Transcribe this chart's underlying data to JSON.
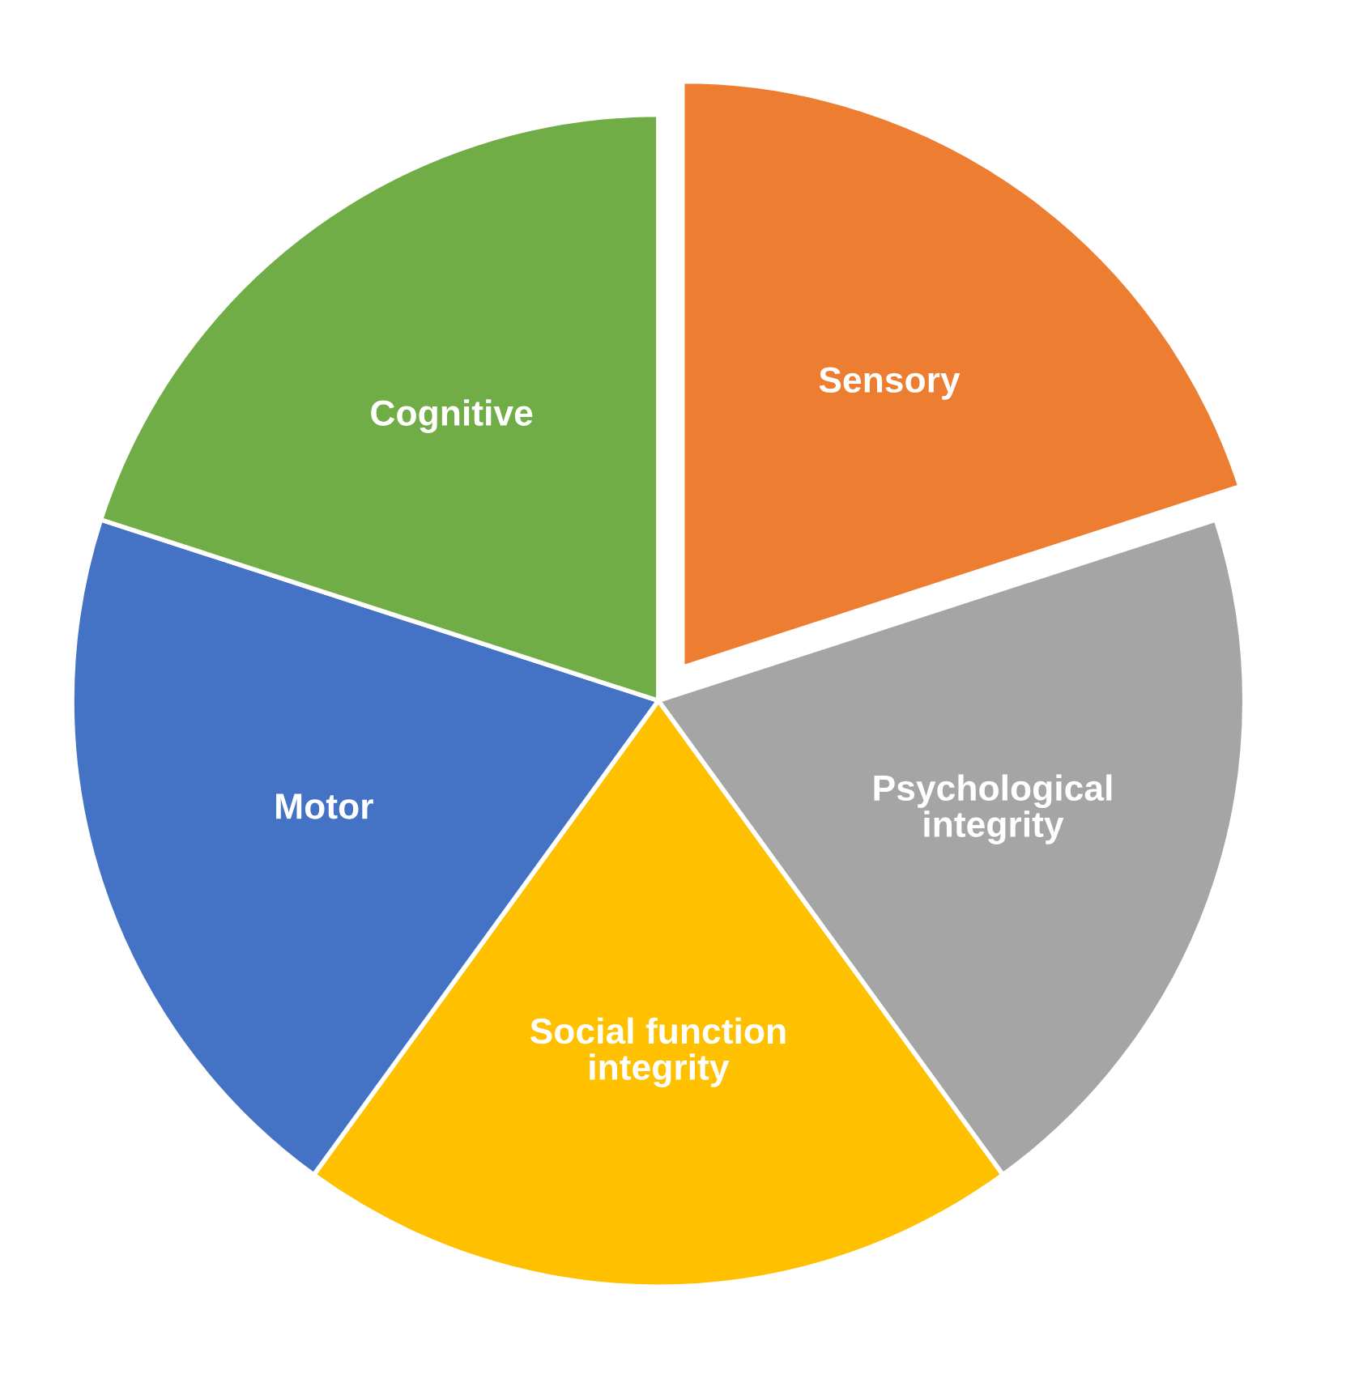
{
  "chart_data": {
    "type": "pie",
    "categories": [
      "Sensory",
      "Psychological integrity",
      "Social function integrity",
      "Motor",
      "Cognitive"
    ],
    "values": [
      20,
      20,
      20,
      20,
      20
    ],
    "colors": [
      "#ed7d31",
      "#a5a5a5",
      "#ffc000",
      "#4472c4",
      "#70ad47"
    ],
    "legend": false
  }
}
